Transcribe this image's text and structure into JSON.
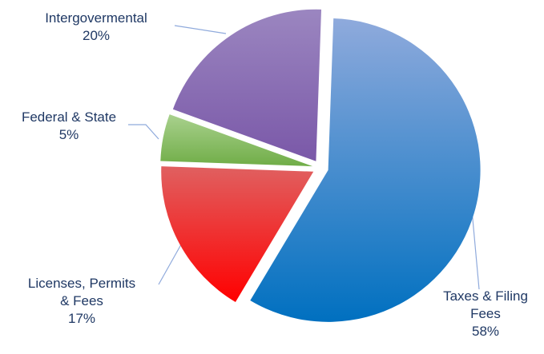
{
  "colors": {
    "label_text": "#1f3864",
    "leader_line": "#8faadc"
  },
  "chart_data": {
    "type": "pie",
    "title": "",
    "exploded": true,
    "start_angle_deg": 2,
    "slices": [
      {
        "key": "taxes",
        "name_lines": [
          "Taxes & Filing",
          "Fees"
        ],
        "pct_label": "58%",
        "value": 58,
        "color_top": "#8faadc",
        "color_bottom": "#0070c0"
      },
      {
        "key": "licenses",
        "name_lines": [
          "Licenses, Permits",
          "& Fees"
        ],
        "pct_label": "17%",
        "value": 17,
        "color_top": "#e06060",
        "color_bottom": "#ff0000"
      },
      {
        "key": "federal",
        "name_lines": [
          "Federal & State"
        ],
        "pct_label": "5%",
        "value": 5,
        "color_top": "#a9d18e",
        "color_bottom": "#70ad47"
      },
      {
        "key": "intergov",
        "name_lines": [
          "Intergovermental"
        ],
        "pct_label": "20%",
        "value": 20,
        "color_top": "#9b86c0",
        "color_bottom": "#7a58a8"
      }
    ]
  }
}
